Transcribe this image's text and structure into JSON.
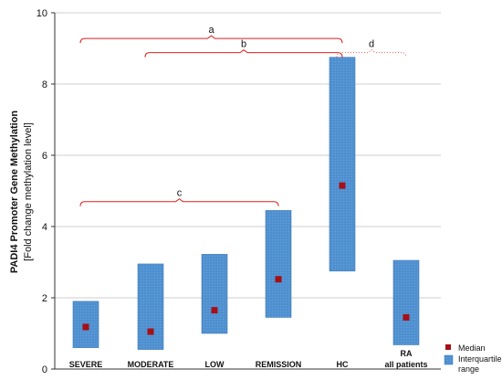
{
  "chart_data": {
    "type": "box",
    "title": "",
    "ylabel_line1": "PADI4 Promoter Gene Methylation",
    "ylabel_line2": "[Fold change methylation level]",
    "xlabel": "",
    "ylim": [
      0,
      10
    ],
    "yticks": [
      "0",
      "2",
      "4",
      "6",
      "8",
      "10"
    ],
    "grid": "horizontal",
    "categories": [
      {
        "label": "SEVERE",
        "label2": ""
      },
      {
        "label": "MODERATE",
        "label2": ""
      },
      {
        "label": "LOW",
        "label2": ""
      },
      {
        "label": "REMISSION",
        "label2": ""
      },
      {
        "label": "HC",
        "label2": ""
      },
      {
        "label": "RA",
        "label2": "all patients"
      }
    ],
    "series": [
      {
        "name": "Interquartile range",
        "q1": [
          0.6,
          0.55,
          1.0,
          1.45,
          2.75,
          0.68
        ],
        "q3": [
          1.9,
          2.95,
          3.22,
          4.45,
          8.75,
          3.05
        ]
      },
      {
        "name": "Median",
        "values": [
          1.18,
          1.05,
          1.65,
          2.52,
          5.15,
          1.45
        ]
      }
    ],
    "annotations": [
      {
        "label": "a",
        "from": 0,
        "to": 4,
        "y": 9.28,
        "style": "solid"
      },
      {
        "label": "b",
        "from": 1,
        "to": 4,
        "y": 8.88,
        "style": "solid"
      },
      {
        "label": "c",
        "from": 0,
        "to": 3,
        "y": 4.7,
        "style": "solid"
      },
      {
        "label": "d",
        "from": 4,
        "to": 5,
        "y": 8.88,
        "style": "dotted"
      }
    ],
    "legend": {
      "position": "bottom-right",
      "median_label": "Median",
      "iqr_label_line1": "Interquartile",
      "iqr_label_line2": "range"
    },
    "colors": {
      "bar_fill": "#4f90d0",
      "bar_stroke": "#3a76b8",
      "median": "#a50f15",
      "bracket": "#e02020",
      "grid": "#bfbfbf"
    }
  }
}
